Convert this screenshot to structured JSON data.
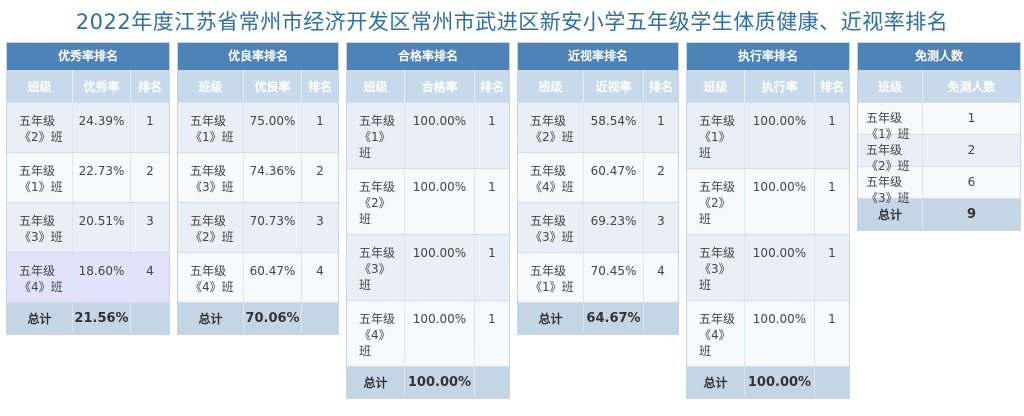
{
  "title": "2022年度江苏省常州市经济开发区常州市武进区新安小学五年级学生体质健康、近视率排名",
  "panels": [
    {
      "heading": "优秀率排名",
      "columns": [
        "班级",
        "优秀率",
        "排名"
      ],
      "rows": [
        {
          "class_name": "五年级《2》班",
          "value": "24.39%",
          "rank": "1"
        },
        {
          "class_name": "五年级《1》班",
          "value": "22.73%",
          "rank": "2"
        },
        {
          "class_name": "五年级《3》班",
          "value": "20.51%",
          "rank": "3"
        },
        {
          "class_name": "五年级《4》班",
          "value": "18.60%",
          "rank": "4"
        }
      ],
      "total_label": "总计",
      "total_value": "21.56%"
    },
    {
      "heading": "优良率排名",
      "columns": [
        "班级",
        "优良率",
        "排名"
      ],
      "rows": [
        {
          "class_name": "五年级《1》班",
          "value": "75.00%",
          "rank": "1"
        },
        {
          "class_name": "五年级《3》班",
          "value": "74.36%",
          "rank": "2"
        },
        {
          "class_name": "五年级《2》班",
          "value": "70.73%",
          "rank": "3"
        },
        {
          "class_name": "五年级《4》班",
          "value": "60.47%",
          "rank": "4"
        }
      ],
      "total_label": "总计",
      "total_value": "70.06%"
    },
    {
      "heading": "合格率排名",
      "columns": [
        "班级",
        "合格率",
        "排名"
      ],
      "rows": [
        {
          "class_name": "五年级《1》班",
          "value": "100.00%",
          "rank": "1"
        },
        {
          "class_name": "五年级《2》班",
          "value": "100.00%",
          "rank": "1"
        },
        {
          "class_name": "五年级《3》班",
          "value": "100.00%",
          "rank": "1"
        },
        {
          "class_name": "五年级《4》班",
          "value": "100.00%",
          "rank": "1"
        }
      ],
      "total_label": "总计",
      "total_value": "100.00%"
    },
    {
      "heading": "近视率排名",
      "columns": [
        "班级",
        "近视率",
        "排名"
      ],
      "rows": [
        {
          "class_name": "五年级《2》班",
          "value": "58.54%",
          "rank": "1"
        },
        {
          "class_name": "五年级《4》班",
          "value": "60.47%",
          "rank": "2"
        },
        {
          "class_name": "五年级《3》班",
          "value": "69.23%",
          "rank": "3"
        },
        {
          "class_name": "五年级《1》班",
          "value": "70.45%",
          "rank": "4"
        }
      ],
      "total_label": "总计",
      "total_value": "64.67%"
    },
    {
      "heading": "执行率排名",
      "columns": [
        "班级",
        "执行率",
        "排名"
      ],
      "rows": [
        {
          "class_name": "五年级《1》班",
          "value": "100.00%",
          "rank": "1"
        },
        {
          "class_name": "五年级《2》班",
          "value": "100.00%",
          "rank": "1"
        },
        {
          "class_name": "五年级《3》班",
          "value": "100.00%",
          "rank": "1"
        },
        {
          "class_name": "五年级《4》班",
          "value": "100.00%",
          "rank": "1"
        }
      ],
      "total_label": "总计",
      "total_value": "100.00%"
    },
    {
      "heading": "免测人数",
      "columns": [
        "班级",
        "免测人数"
      ],
      "rows": [
        {
          "class_name": "五年级《1》班",
          "value": "1"
        },
        {
          "class_name": "五年级《2》班",
          "value": "2"
        },
        {
          "class_name": "五年级《3》班",
          "value": "6"
        }
      ],
      "total_label": "总计",
      "total_value": "9"
    }
  ]
}
